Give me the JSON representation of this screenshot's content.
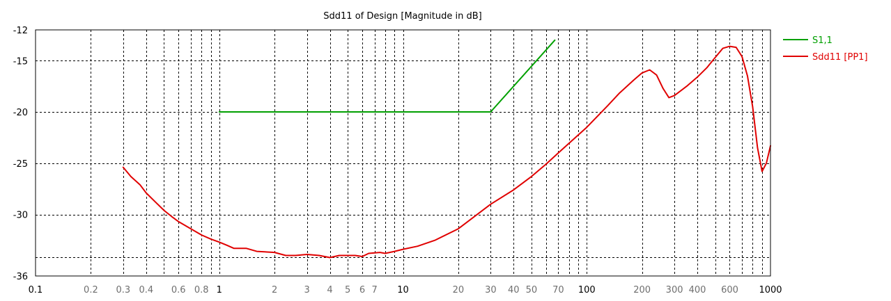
{
  "chart_data": {
    "type": "line",
    "title": "Sdd11 of Design [Magnitude in dB]",
    "x_scale": "log",
    "xlim": [
      0.1,
      1000
    ],
    "ylim": [
      -36,
      -12
    ],
    "grid": true,
    "legend_position": "right",
    "y_ticks": [
      -12,
      -15,
      -20,
      -25,
      -30,
      -36
    ],
    "y_extra_gridline": -34.2,
    "x_ticks_major": [
      0.1,
      1,
      10,
      100,
      1000
    ],
    "x_ticks_minor": [
      0.2,
      0.3,
      0.4,
      0.5,
      0.6,
      0.7,
      0.8,
      0.9,
      2,
      3,
      4,
      5,
      6,
      7,
      8,
      9,
      20,
      30,
      40,
      50,
      60,
      70,
      80,
      90,
      200,
      300,
      400,
      500,
      600,
      700,
      800,
      900
    ],
    "x_tick_labels": [
      {
        "value": 0.1,
        "label": "0.1",
        "major": true
      },
      {
        "value": 0.2,
        "label": "0.2",
        "major": false
      },
      {
        "value": 0.3,
        "label": "0.3",
        "major": false
      },
      {
        "value": 0.4,
        "label": "0.4",
        "major": false
      },
      {
        "value": 0.6,
        "label": "0.6",
        "major": false
      },
      {
        "value": 0.8,
        "label": "0.8",
        "major": false
      },
      {
        "value": 1,
        "label": "1",
        "major": true
      },
      {
        "value": 2,
        "label": "2",
        "major": false
      },
      {
        "value": 3,
        "label": "3",
        "major": false
      },
      {
        "value": 4,
        "label": "4",
        "major": false
      },
      {
        "value": 5,
        "label": "5",
        "major": false
      },
      {
        "value": 6,
        "label": "6",
        "major": false
      },
      {
        "value": 7,
        "label": "7",
        "major": false
      },
      {
        "value": 10,
        "label": "10",
        "major": true
      },
      {
        "value": 20,
        "label": "20",
        "major": false
      },
      {
        "value": 30,
        "label": "30",
        "major": false
      },
      {
        "value": 40,
        "label": "40",
        "major": false
      },
      {
        "value": 50,
        "label": "50",
        "major": false
      },
      {
        "value": 70,
        "label": "70",
        "major": false
      },
      {
        "value": 100,
        "label": "100",
        "major": true
      },
      {
        "value": 200,
        "label": "200",
        "major": false
      },
      {
        "value": 300,
        "label": "300",
        "major": false
      },
      {
        "value": 400,
        "label": "400",
        "major": false
      },
      {
        "value": 600,
        "label": "600",
        "major": false
      },
      {
        "value": 1000,
        "label": "1000",
        "major": true
      }
    ],
    "series": [
      {
        "name": "S1,1",
        "color": "#00a000",
        "points": [
          [
            1,
            -20
          ],
          [
            30,
            -20
          ],
          [
            67,
            -13.0
          ]
        ]
      },
      {
        "name": "Sdd11 [PP1]",
        "color": "#e00000",
        "points": [
          [
            0.3,
            -25.4
          ],
          [
            0.33,
            -26.3
          ],
          [
            0.37,
            -27.1
          ],
          [
            0.4,
            -27.9
          ],
          [
            0.45,
            -28.8
          ],
          [
            0.5,
            -29.6
          ],
          [
            0.55,
            -30.2
          ],
          [
            0.6,
            -30.7
          ],
          [
            0.7,
            -31.4
          ],
          [
            0.8,
            -32.0
          ],
          [
            0.9,
            -32.4
          ],
          [
            1.0,
            -32.7
          ],
          [
            1.1,
            -33.0
          ],
          [
            1.2,
            -33.3
          ],
          [
            1.4,
            -33.3
          ],
          [
            1.6,
            -33.6
          ],
          [
            2.0,
            -33.7
          ],
          [
            2.3,
            -34.0
          ],
          [
            2.6,
            -34.0
          ],
          [
            3.0,
            -33.9
          ],
          [
            3.5,
            -34.0
          ],
          [
            4.0,
            -34.2
          ],
          [
            4.5,
            -34.0
          ],
          [
            5.0,
            -34.0
          ],
          [
            5.5,
            -34.0
          ],
          [
            6.0,
            -34.1
          ],
          [
            6.5,
            -33.8
          ],
          [
            7.5,
            -33.7
          ],
          [
            8.0,
            -33.8
          ],
          [
            9.0,
            -33.6
          ],
          [
            10,
            -33.4
          ],
          [
            12,
            -33.1
          ],
          [
            15,
            -32.5
          ],
          [
            20,
            -31.4
          ],
          [
            30,
            -29.0
          ],
          [
            40,
            -27.6
          ],
          [
            50,
            -26.3
          ],
          [
            60,
            -25.1
          ],
          [
            70,
            -24.0
          ],
          [
            100,
            -21.5
          ],
          [
            130,
            -19.4
          ],
          [
            150,
            -18.2
          ],
          [
            180,
            -16.9
          ],
          [
            200,
            -16.2
          ],
          [
            220,
            -15.9
          ],
          [
            240,
            -16.4
          ],
          [
            260,
            -17.7
          ],
          [
            280,
            -18.6
          ],
          [
            300,
            -18.4
          ],
          [
            350,
            -17.5
          ],
          [
            400,
            -16.6
          ],
          [
            450,
            -15.7
          ],
          [
            500,
            -14.7
          ],
          [
            550,
            -13.8
          ],
          [
            600,
            -13.6
          ],
          [
            650,
            -13.7
          ],
          [
            700,
            -14.6
          ],
          [
            750,
            -16.5
          ],
          [
            800,
            -19.5
          ],
          [
            850,
            -23.5
          ],
          [
            900,
            -25.8
          ],
          [
            950,
            -25.0
          ],
          [
            1000,
            -23.3
          ]
        ]
      }
    ]
  }
}
